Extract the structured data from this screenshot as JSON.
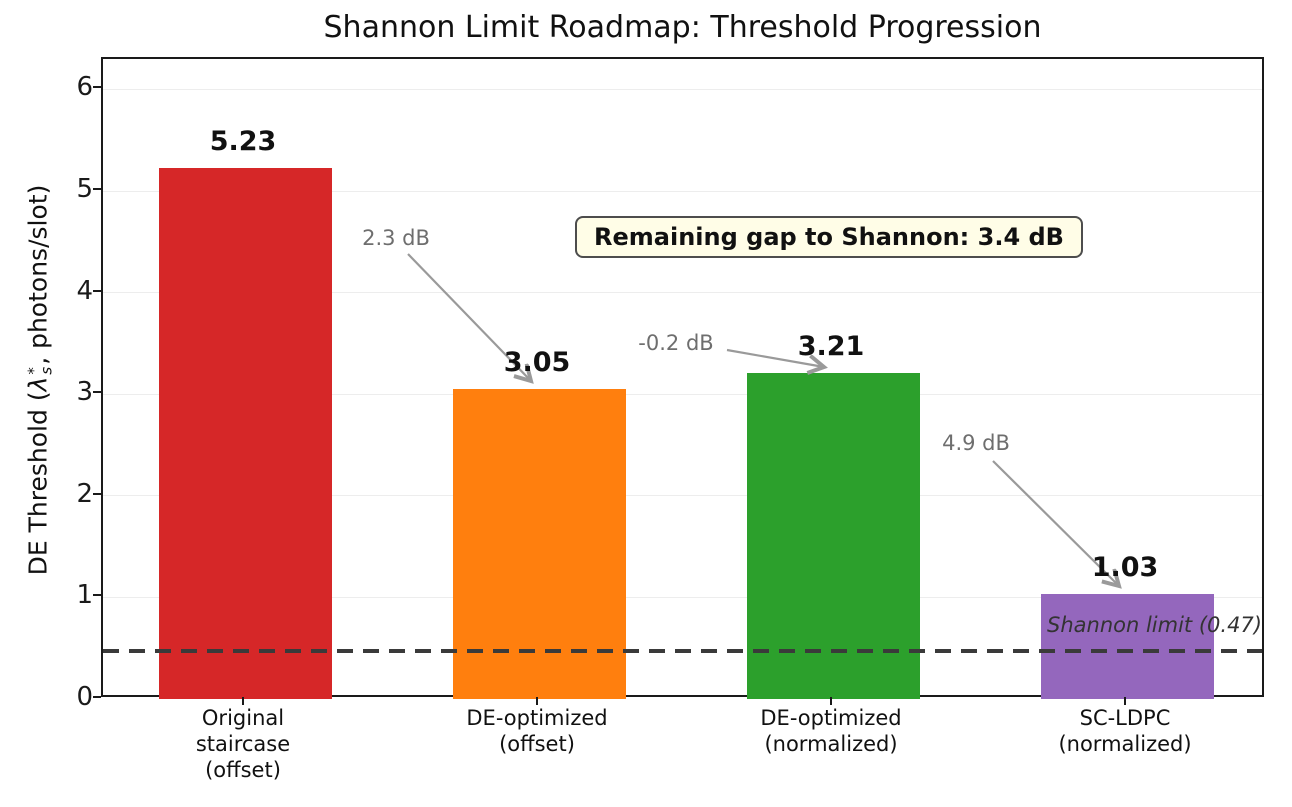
{
  "title": "Shannon Limit Roadmap: Threshold Progression",
  "y_axis": {
    "label_prefix": "DE Threshold (",
    "label_symbol": "λ",
    "label_sup": "*",
    "label_sub": "s",
    "label_suffix": ", photons/slot)",
    "tick_labels": [
      "0",
      "1",
      "2",
      "3",
      "4",
      "5",
      "6"
    ]
  },
  "chart_data": {
    "type": "bar",
    "title": "Shannon Limit Roadmap: Threshold Progression",
    "ylabel": "DE Threshold (λ_s^*, photons/slot)",
    "categories": [
      "Original staircase (offset)",
      "DE-optimized (offset)",
      "DE-optimized (normalized)",
      "SC-LDPC (normalized)"
    ],
    "category_lines": [
      [
        "Original",
        "staircase",
        "(offset)"
      ],
      [
        "DE-optimized",
        "(offset)"
      ],
      [
        "DE-optimized",
        "(normalized)"
      ],
      [
        "SC-LDPC",
        "(normalized)"
      ]
    ],
    "values": [
      5.23,
      3.05,
      3.21,
      1.03
    ],
    "value_labels": [
      "5.23",
      "3.05",
      "3.21",
      "1.03"
    ],
    "bar_colors": [
      "#d62728",
      "#ff7f0e",
      "#2ca02c",
      "#9467bd"
    ],
    "ylim": [
      0,
      6.3
    ],
    "yticks": [
      0,
      1,
      2,
      3,
      4,
      5,
      6
    ],
    "grid": "horizontal-light",
    "legend": "none",
    "reference_line": {
      "value": 0.47,
      "label": "Shannon limit (0.47)",
      "style": "dashed"
    },
    "annotations": [
      {
        "text": "2.3 dB"
      },
      {
        "text": "-0.2 dB"
      },
      {
        "text": "4.9 dB"
      }
    ],
    "callout": "Remaining gap to Shannon: 3.4 dB"
  },
  "colors": {
    "annotation_text": "#6e6e6e",
    "arrow": "#9a9a9a",
    "reference_line": "#3a3a3a",
    "callout_bg": "#fffde7",
    "grid": "#ededed",
    "spine": "#1a1a1a"
  }
}
